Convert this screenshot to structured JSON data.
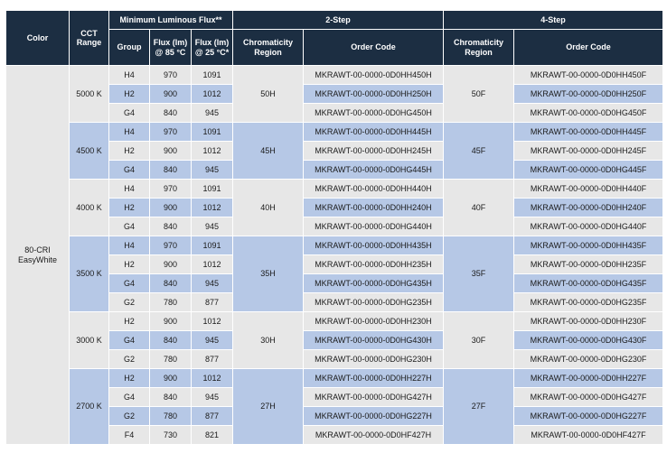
{
  "header": {
    "color": "Color",
    "cct_range": "CCT Range",
    "min_flux": "Minimum Luminous Flux**",
    "two_step": "2-Step",
    "four_step": "4-Step",
    "group": "Group",
    "flux85": "Flux (lm) @ 85 °C",
    "flux25": "Flux (lm) @ 25 °C*",
    "chromaticity": "Chromaticity Region",
    "order_code": "Order Code"
  },
  "color_value": "80-CRI EasyWhite",
  "blocks": [
    {
      "cct": "5000 K",
      "region2": "50H",
      "region4": "50F",
      "rows": [
        {
          "group": "H4",
          "f85": "970",
          "f25": "1091",
          "code2": "MKRAWT-00-0000-0D0HH450H",
          "code4": "MKRAWT-00-0000-0D0HH450F"
        },
        {
          "group": "H2",
          "f85": "900",
          "f25": "1012",
          "code2": "MKRAWT-00-0000-0D0HH250H",
          "code4": "MKRAWT-00-0000-0D0HH250F"
        },
        {
          "group": "G4",
          "f85": "840",
          "f25": "945",
          "code2": "MKRAWT-00-0000-0D0HG450H",
          "code4": "MKRAWT-00-0000-0D0HG450F"
        }
      ]
    },
    {
      "cct": "4500 K",
      "region2": "45H",
      "region4": "45F",
      "rows": [
        {
          "group": "H4",
          "f85": "970",
          "f25": "1091",
          "code2": "MKRAWT-00-0000-0D0HH445H",
          "code4": "MKRAWT-00-0000-0D0HH445F"
        },
        {
          "group": "H2",
          "f85": "900",
          "f25": "1012",
          "code2": "MKRAWT-00-0000-0D0HH245H",
          "code4": "MKRAWT-00-0000-0D0HH245F"
        },
        {
          "group": "G4",
          "f85": "840",
          "f25": "945",
          "code2": "MKRAWT-00-0000-0D0HG445H",
          "code4": "MKRAWT-00-0000-0D0HG445F"
        }
      ]
    },
    {
      "cct": "4000 K",
      "region2": "40H",
      "region4": "40F",
      "rows": [
        {
          "group": "H4",
          "f85": "970",
          "f25": "1091",
          "code2": "MKRAWT-00-0000-0D0HH440H",
          "code4": "MKRAWT-00-0000-0D0HH440F"
        },
        {
          "group": "H2",
          "f85": "900",
          "f25": "1012",
          "code2": "MKRAWT-00-0000-0D0HH240H",
          "code4": "MKRAWT-00-0000-0D0HH240F"
        },
        {
          "group": "G4",
          "f85": "840",
          "f25": "945",
          "code2": "MKRAWT-00-0000-0D0HG440H",
          "code4": "MKRAWT-00-0000-0D0HG440F"
        }
      ]
    },
    {
      "cct": "3500 K",
      "region2": "35H",
      "region4": "35F",
      "rows": [
        {
          "group": "H4",
          "f85": "970",
          "f25": "1091",
          "code2": "MKRAWT-00-0000-0D0HH435H",
          "code4": "MKRAWT-00-0000-0D0HH435F"
        },
        {
          "group": "H2",
          "f85": "900",
          "f25": "1012",
          "code2": "MKRAWT-00-0000-0D0HH235H",
          "code4": "MKRAWT-00-0000-0D0HH235F"
        },
        {
          "group": "G4",
          "f85": "840",
          "f25": "945",
          "code2": "MKRAWT-00-0000-0D0HG435H",
          "code4": "MKRAWT-00-0000-0D0HG435F"
        },
        {
          "group": "G2",
          "f85": "780",
          "f25": "877",
          "code2": "MKRAWT-00-0000-0D0HG235H",
          "code4": "MKRAWT-00-0000-0D0HG235F"
        }
      ]
    },
    {
      "cct": "3000 K",
      "region2": "30H",
      "region4": "30F",
      "rows": [
        {
          "group": "H2",
          "f85": "900",
          "f25": "1012",
          "code2": "MKRAWT-00-0000-0D0HH230H",
          "code4": "MKRAWT-00-0000-0D0HH230F"
        },
        {
          "group": "G4",
          "f85": "840",
          "f25": "945",
          "code2": "MKRAWT-00-0000-0D0HG430H",
          "code4": "MKRAWT-00-0000-0D0HG430F"
        },
        {
          "group": "G2",
          "f85": "780",
          "f25": "877",
          "code2": "MKRAWT-00-0000-0D0HG230H",
          "code4": "MKRAWT-00-0000-0D0HG230F"
        }
      ]
    },
    {
      "cct": "2700 K",
      "region2": "27H",
      "region4": "27F",
      "rows": [
        {
          "group": "H2",
          "f85": "900",
          "f25": "1012",
          "code2": "MKRAWT-00-0000-0D0HH227H",
          "code4": "MKRAWT-00-0000-0D0HH227F"
        },
        {
          "group": "G4",
          "f85": "840",
          "f25": "945",
          "code2": "MKRAWT-00-0000-0D0HG427H",
          "code4": "MKRAWT-00-0000-0D0HG427F"
        },
        {
          "group": "G2",
          "f85": "780",
          "f25": "877",
          "code2": "MKRAWT-00-0000-0D0HG227H",
          "code4": "MKRAWT-00-0000-0D0HG227F"
        },
        {
          "group": "F4",
          "f85": "730",
          "f25": "821",
          "code2": "MKRAWT-00-0000-0D0HF427H",
          "code4": "MKRAWT-00-0000-0D0HF427F"
        }
      ]
    }
  ],
  "colors": {
    "header_bg": "#1c2e42",
    "row_grey": "#e7e7e7",
    "row_blue": "#b6c8e6"
  }
}
